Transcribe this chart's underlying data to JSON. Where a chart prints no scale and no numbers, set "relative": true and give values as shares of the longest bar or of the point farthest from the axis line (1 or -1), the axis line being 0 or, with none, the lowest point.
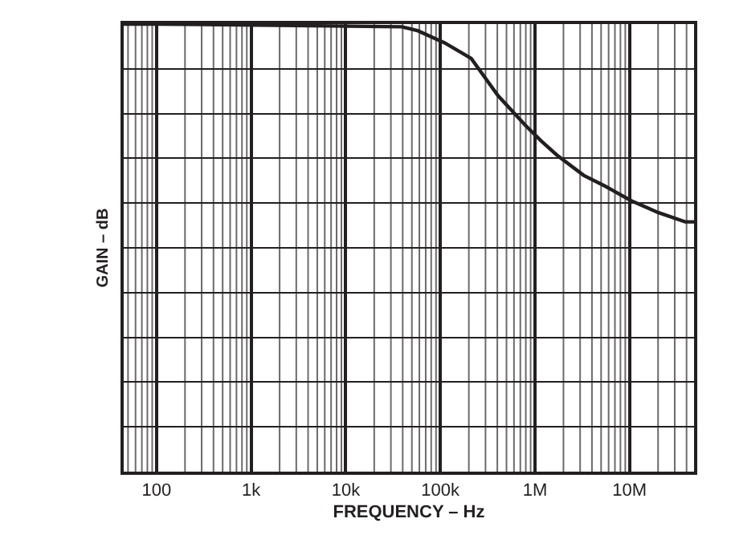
{
  "chart_data": {
    "type": "line",
    "relative": true,
    "xlabel": "FREQUENCY – Hz",
    "ylabel": "GAIN – dB",
    "log": "x",
    "grid": true,
    "marker": "none",
    "line_style": "solid",
    "xlim": [
      45,
      48000000
    ],
    "xticks": [
      {
        "value": 100,
        "label": "100"
      },
      {
        "value": 1000,
        "label": "1k"
      },
      {
        "value": 10000,
        "label": "10k"
      },
      {
        "value": 100000,
        "label": "100k"
      },
      {
        "value": 1000000,
        "label": "1M"
      },
      {
        "value": 10000000,
        "label": "10M"
      }
    ],
    "series": [
      {
        "color": "#231f20",
        "x": [
          45,
          100,
          39000,
          58000,
          111000,
          212000,
          407000,
          781000,
          1160000,
          1710000,
          3270000,
          5500000,
          10500000,
          20000000,
          38700000,
          48000000
        ],
        "values": [
          1.0,
          1.0,
          0.994,
          0.985,
          0.958,
          0.923,
          0.84,
          0.775,
          0.739,
          0.707,
          0.662,
          0.638,
          0.605,
          0.579,
          0.558,
          0.558
        ]
      }
    ]
  }
}
